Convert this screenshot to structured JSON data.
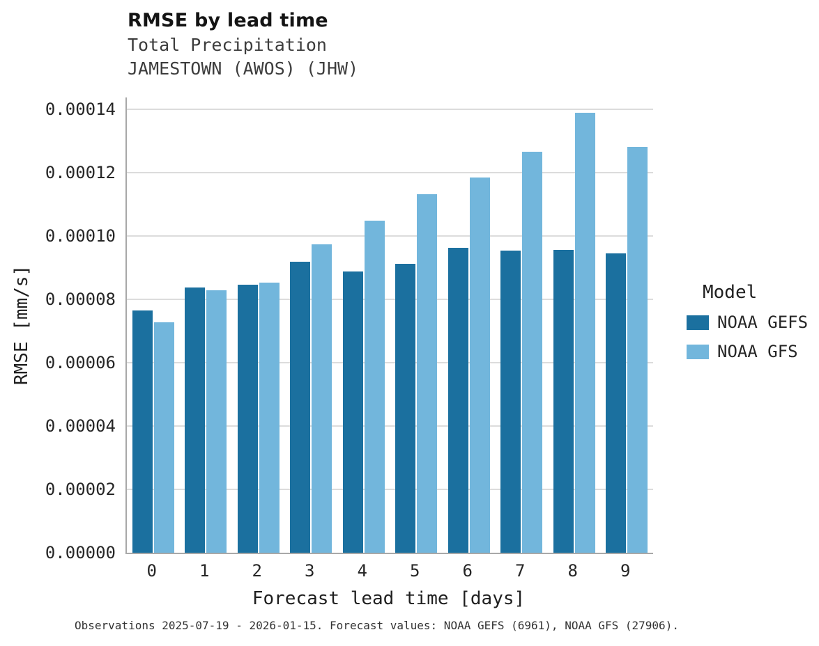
{
  "caption": "Observations 2025-07-19 - 2026-01-15. Forecast values: NOAA GEFS (6961), NOAA GFS (27906).",
  "legend": {
    "title": "Model"
  },
  "chart_data": {
    "type": "bar",
    "title": "RMSE by lead time",
    "subtitle": [
      "Total Precipitation",
      "JAMESTOWN (AWOS) (JHW)"
    ],
    "xlabel": "Forecast lead time [days]",
    "ylabel": "RMSE [mm/s]",
    "categories": [
      "0",
      "1",
      "2",
      "3",
      "4",
      "5",
      "6",
      "7",
      "8",
      "9"
    ],
    "ylim": [
      0,
      0.00014
    ],
    "ytick_step": 2e-05,
    "ytick_labels": [
      "0.00000",
      "0.00002",
      "0.00004",
      "0.00006",
      "0.00008",
      "0.00010",
      "0.00012",
      "0.00014"
    ],
    "grid": true,
    "legend_position": "right",
    "series": [
      {
        "name": "NOAA GEFS",
        "color": "#1b709f",
        "values": [
          7.65e-05,
          8.38e-05,
          8.46e-05,
          9.18e-05,
          8.89e-05,
          9.13e-05,
          9.62e-05,
          9.53e-05,
          9.57e-05,
          9.46e-05
        ]
      },
      {
        "name": "NOAA GFS",
        "color": "#72b6dc",
        "values": [
          7.27e-05,
          8.29e-05,
          8.52e-05,
          9.73e-05,
          0.0001048,
          0.0001133,
          0.0001184,
          0.0001266,
          0.000139,
          0.0001281
        ]
      }
    ]
  }
}
